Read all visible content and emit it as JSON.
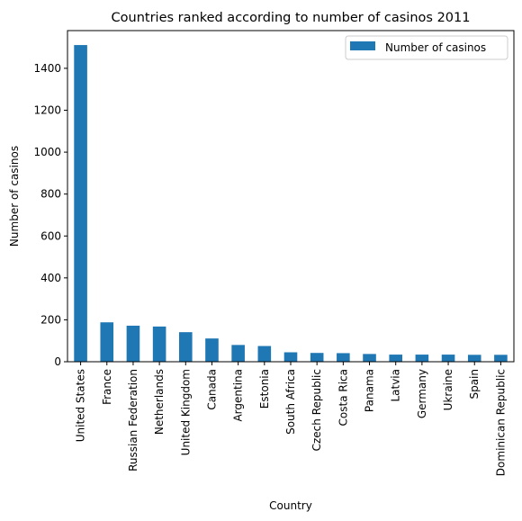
{
  "chart_data": {
    "type": "bar",
    "title": "Countries ranked according to number of casinos 2011",
    "xlabel": "Country",
    "ylabel": "Number of casinos",
    "ylim": [
      0,
      1580
    ],
    "yticks": [
      0,
      200,
      400,
      600,
      800,
      1000,
      1200,
      1400
    ],
    "grid": false,
    "legend_position": "top-right",
    "categories": [
      "United States",
      "France",
      "Russian Federation",
      "Netherlands",
      "United Kingdom",
      "Canada",
      "Argentina",
      "Estonia",
      "South Africa",
      "Czech Republic",
      "Costa Rica",
      "Panama",
      "Latvia",
      "Germany",
      "Ukraine",
      "Spain",
      "Dominican Republic"
    ],
    "series": [
      {
        "name": "Number of casinos",
        "color": "#1f77b4",
        "values": [
          1511,
          188,
          172,
          168,
          141,
          111,
          80,
          75,
          45,
          42,
          41,
          37,
          34,
          34,
          34,
          33,
          33
        ]
      }
    ]
  }
}
